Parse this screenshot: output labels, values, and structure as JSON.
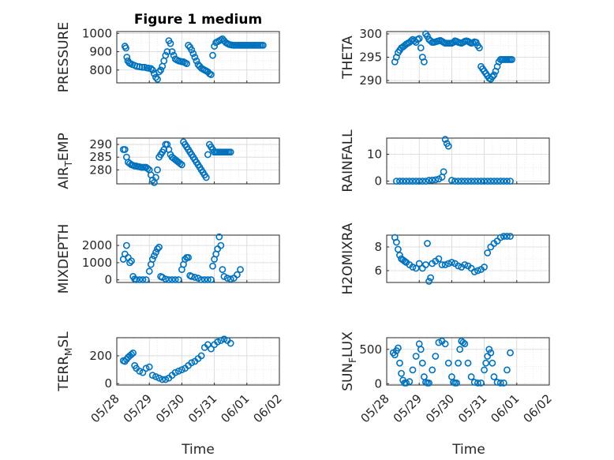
{
  "figure": {
    "title": "Figure 1 medium",
    "xlabel": "Time",
    "x_ticks": [
      "05/28",
      "05/29",
      "05/30",
      "05/31",
      "06/01",
      "06/02"
    ],
    "marker_color": "#0072BD"
  },
  "chart_data": [
    {
      "type": "scatter",
      "name": "PRESSURE",
      "ylabel_main": "PRESSURE",
      "ylabel_sub": "",
      "ylabel_tail": "",
      "ylim": [
        730,
        1010
      ],
      "yticks": [
        800,
        900,
        1000
      ],
      "grid": true,
      "x": [
        0.25,
        0.28,
        0.31,
        0.34,
        0.38,
        0.42,
        0.48,
        0.55,
        0.62,
        0.7,
        0.78,
        0.85,
        0.92,
        0.98,
        1.05,
        1.1,
        1.15,
        1.2,
        1.25,
        1.3,
        1.35,
        1.4,
        1.45,
        1.5,
        1.55,
        1.6,
        1.65,
        1.7,
        1.75,
        1.8,
        1.85,
        1.9,
        1.95,
        2.0,
        2.05,
        2.1,
        2.15,
        2.2,
        2.25,
        2.3,
        2.35,
        2.4,
        2.45,
        2.5,
        2.55,
        2.6,
        2.65,
        2.7,
        2.75,
        2.8,
        2.85,
        2.9,
        2.95,
        3.0,
        3.05,
        3.1,
        3.15,
        3.2,
        3.25,
        3.3,
        3.35,
        3.4,
        3.45,
        3.5,
        3.55,
        3.6,
        3.65,
        3.7,
        3.75,
        3.8,
        3.85,
        3.9,
        3.95,
        4.0,
        4.05,
        4.1,
        4.15,
        4.2,
        4.25,
        4.3,
        4.35,
        4.4,
        4.45,
        4.5
      ],
      "y": [
        930,
        920,
        870,
        850,
        840,
        835,
        830,
        825,
        820,
        818,
        815,
        815,
        812,
        810,
        808,
        800,
        780,
        760,
        750,
        790,
        800,
        820,
        850,
        880,
        900,
        960,
        945,
        900,
        880,
        860,
        855,
        850,
        848,
        845,
        845,
        840,
        835,
        935,
        925,
        910,
        890,
        870,
        850,
        830,
        820,
        810,
        805,
        800,
        795,
        790,
        780,
        775,
        880,
        930,
        950,
        955,
        960,
        965,
        970,
        960,
        950,
        945,
        940,
        938,
        936,
        935,
        935,
        935,
        935,
        935,
        935,
        935,
        935,
        935,
        935,
        935,
        935,
        935,
        935,
        935,
        935,
        935,
        935,
        935
      ]
    },
    {
      "type": "scatter",
      "name": "THETA",
      "ylabel_main": "THETA",
      "ylabel_sub": "",
      "ylabel_tail": "",
      "ylim": [
        289.5,
        300.5
      ],
      "yticks": [
        290,
        295,
        300
      ],
      "grid": true,
      "x": [
        0.25,
        0.3,
        0.35,
        0.4,
        0.45,
        0.5,
        0.55,
        0.6,
        0.65,
        0.7,
        0.75,
        0.8,
        0.85,
        0.9,
        0.95,
        1.0,
        1.05,
        1.1,
        1.15,
        1.2,
        1.25,
        1.3,
        1.35,
        1.4,
        1.45,
        1.5,
        1.55,
        1.6,
        1.65,
        1.7,
        1.75,
        1.8,
        1.85,
        1.9,
        1.95,
        2.0,
        2.05,
        2.1,
        2.15,
        2.2,
        2.25,
        2.3,
        2.35,
        2.4,
        2.45,
        2.5,
        2.55,
        2.6,
        2.65,
        2.7,
        2.75,
        2.8,
        2.85,
        2.9,
        2.95,
        3.0,
        3.05,
        3.1,
        3.15,
        3.2,
        3.25,
        3.3,
        3.35,
        3.4,
        3.45,
        3.5,
        3.55,
        3.6,
        3.65,
        3.7,
        3.75,
        3.8,
        3.85
      ],
      "y": [
        294,
        295,
        296,
        296.5,
        297,
        297.2,
        297.5,
        297.8,
        298,
        298.2,
        298.5,
        298.8,
        298.5,
        298.2,
        298.8,
        299,
        297,
        295,
        294,
        300,
        299.5,
        298.8,
        298.5,
        298.2,
        298.2,
        298.3,
        298.4,
        298.5,
        298.6,
        298.4,
        298.2,
        298,
        298,
        298,
        298,
        298,
        298.2,
        298.5,
        298.4,
        298.2,
        298.1,
        298,
        298.2,
        298.4,
        298.5,
        298.4,
        298.2,
        298,
        298.1,
        298.3,
        298.2,
        297.5,
        297,
        293,
        292.5,
        292,
        291.5,
        291,
        290.5,
        290.3,
        290.8,
        291.2,
        292,
        293,
        294,
        294.5,
        294.5,
        294.5,
        294.5,
        294.5,
        294.5,
        294.5,
        294.5
      ]
    },
    {
      "type": "scatter",
      "name": "AIR_TEMP",
      "ylabel_main": "AIR",
      "ylabel_sub": "T",
      "ylabel_tail": "EMP",
      "ylim": [
        274.5,
        292.5
      ],
      "yticks": [
        280,
        285,
        290
      ],
      "grid": true,
      "x": [
        0.2,
        0.25,
        0.3,
        0.35,
        0.4,
        0.45,
        0.5,
        0.55,
        0.6,
        0.65,
        0.7,
        0.75,
        0.8,
        0.85,
        0.9,
        0.95,
        1.0,
        1.05,
        1.1,
        1.15,
        1.2,
        1.25,
        1.3,
        1.35,
        1.4,
        1.45,
        1.5,
        1.55,
        1.6,
        1.65,
        1.7,
        1.75,
        1.8,
        1.85,
        1.9,
        1.95,
        2.0,
        2.05,
        2.1,
        2.15,
        2.2,
        2.25,
        2.3,
        2.35,
        2.4,
        2.45,
        2.5,
        2.55,
        2.6,
        2.65,
        2.7,
        2.75,
        2.8,
        2.85,
        2.9,
        2.95,
        3.0,
        3.05,
        3.1,
        3.15,
        3.2,
        3.25,
        3.3,
        3.35,
        3.4,
        3.45,
        3.5
      ],
      "y": [
        288,
        288,
        285,
        283,
        282.5,
        282,
        281.8,
        281.5,
        281.5,
        281.3,
        281.2,
        281,
        281,
        281,
        281,
        280.5,
        280,
        278,
        276,
        275,
        277,
        280,
        285,
        286,
        287,
        288,
        290,
        290,
        288,
        286,
        285,
        284.5,
        284,
        283.5,
        283,
        282.5,
        282,
        291,
        290,
        289,
        288,
        287,
        286,
        285,
        284,
        283,
        282,
        281,
        280,
        279,
        278,
        277,
        286,
        290,
        289,
        288,
        287,
        287,
        287,
        287,
        287,
        287,
        287,
        287,
        287,
        287,
        287
      ]
    },
    {
      "type": "scatter",
      "name": "RAINFALL",
      "ylabel_main": "RAINFALL",
      "ylabel_sub": "",
      "ylabel_tail": "",
      "ylim": [
        -1,
        16
      ],
      "yticks": [
        0,
        10
      ],
      "grid": true,
      "x": [
        0.3,
        0.4,
        0.5,
        0.6,
        0.7,
        0.8,
        0.9,
        1.0,
        1.1,
        1.2,
        1.3,
        1.4,
        1.5,
        1.6,
        1.7,
        1.75,
        1.8,
        1.85,
        1.9,
        2.0,
        2.1,
        2.2,
        2.3,
        2.4,
        2.5,
        2.6,
        2.7,
        2.8,
        2.9,
        3.0,
        3.1,
        3.2,
        3.3,
        3.4,
        3.5,
        3.6,
        3.7,
        3.8
      ],
      "y": [
        0,
        0,
        0,
        0,
        0,
        0,
        0,
        0,
        0,
        0,
        0.3,
        0.4,
        0.5,
        0.8,
        1.5,
        3.5,
        15.5,
        14,
        13,
        0.3,
        0,
        0,
        0,
        0,
        0,
        0,
        0,
        0,
        0,
        0,
        0,
        0,
        0,
        0,
        0,
        0,
        0,
        0
      ]
    },
    {
      "type": "scatter",
      "name": "MIXDEPTH",
      "ylabel_main": "MIXDEPTH",
      "ylabel_sub": "",
      "ylabel_tail": "",
      "ylim": [
        -150,
        2600
      ],
      "yticks": [
        0,
        1000,
        2000
      ],
      "grid": true,
      "x": [
        0.2,
        0.25,
        0.3,
        0.35,
        0.4,
        0.45,
        0.5,
        0.55,
        0.6,
        0.7,
        0.8,
        0.9,
        1.0,
        1.05,
        1.1,
        1.15,
        1.2,
        1.25,
        1.3,
        1.35,
        1.4,
        1.5,
        1.6,
        1.7,
        1.8,
        1.9,
        2.0,
        2.05,
        2.1,
        2.15,
        2.2,
        2.25,
        2.3,
        2.4,
        2.5,
        2.6,
        2.7,
        2.8,
        2.9,
        2.95,
        3.0,
        3.05,
        3.1,
        3.15,
        3.2,
        3.25,
        3.3,
        3.4,
        3.5,
        3.6,
        3.7,
        3.8
      ],
      "y": [
        1200,
        1500,
        2000,
        1300,
        1000,
        1100,
        200,
        50,
        10,
        10,
        10,
        10,
        500,
        900,
        1200,
        1400,
        1600,
        1800,
        1900,
        200,
        150,
        50,
        10,
        10,
        10,
        10,
        600,
        900,
        1200,
        1300,
        1300,
        250,
        200,
        150,
        100,
        10,
        10,
        10,
        10,
        800,
        1200,
        1500,
        1800,
        2500,
        2000,
        600,
        200,
        100,
        50,
        100,
        300,
        600
      ]
    },
    {
      "type": "scatter",
      "name": "H2OMIXRA",
      "ylabel_main": "H2OMIXRA",
      "ylabel_sub": "",
      "ylabel_tail": "",
      "ylim": [
        5,
        9
      ],
      "yticks": [
        6,
        8
      ],
      "grid": true,
      "x": [
        0.25,
        0.3,
        0.35,
        0.4,
        0.45,
        0.5,
        0.55,
        0.6,
        0.7,
        0.8,
        0.9,
        1.0,
        1.1,
        1.2,
        1.25,
        1.3,
        1.35,
        1.4,
        1.5,
        1.6,
        1.7,
        1.8,
        1.9,
        2.0,
        2.1,
        2.2,
        2.3,
        2.4,
        2.5,
        2.6,
        2.7,
        2.8,
        2.9,
        3.0,
        3.1,
        3.2,
        3.3,
        3.4,
        3.5,
        3.6,
        3.7,
        3.8
      ],
      "y": [
        8.8,
        8.4,
        7.8,
        7.3,
        7.0,
        6.9,
        6.8,
        6.7,
        6.5,
        6.3,
        6.2,
        6.6,
        6.2,
        6.5,
        8.3,
        5.1,
        5.4,
        6.6,
        6.8,
        7.0,
        6.5,
        6.5,
        6.6,
        6.7,
        6.6,
        6.4,
        6.3,
        6.5,
        6.4,
        6.2,
        5.9,
        6.0,
        6.1,
        6.3,
        7.5,
        8.0,
        8.3,
        8.5,
        8.8,
        8.9,
        8.9,
        8.9
      ]
    },
    {
      "type": "scatter",
      "name": "TERR_MSL",
      "ylabel_main": "TERR",
      "ylabel_sub": "M",
      "ylabel_tail": "SL",
      "ylim": [
        -10,
        330
      ],
      "yticks": [
        0,
        200
      ],
      "grid": true,
      "x": [
        0.2,
        0.25,
        0.3,
        0.35,
        0.4,
        0.45,
        0.5,
        0.55,
        0.6,
        0.7,
        0.8,
        0.9,
        1.0,
        1.1,
        1.2,
        1.3,
        1.4,
        1.5,
        1.6,
        1.7,
        1.8,
        1.9,
        2.0,
        2.1,
        2.2,
        2.3,
        2.4,
        2.5,
        2.6,
        2.7,
        2.8,
        2.9,
        3.0,
        3.1,
        3.2,
        3.3,
        3.4,
        3.5
      ],
      "y": [
        165,
        160,
        175,
        190,
        200,
        210,
        220,
        130,
        110,
        90,
        80,
        110,
        120,
        60,
        50,
        40,
        30,
        30,
        40,
        60,
        80,
        90,
        100,
        110,
        130,
        150,
        160,
        180,
        200,
        260,
        280,
        250,
        280,
        300,
        310,
        320,
        310,
        290
      ]
    },
    {
      "type": "scatter",
      "name": "SUN_FLUX",
      "ylabel_main": "SUN",
      "ylabel_sub": "F",
      "ylabel_tail": "LUX",
      "ylim": [
        -20,
        670
      ],
      "yticks": [
        0,
        500
      ],
      "grid": true,
      "x": [
        0.2,
        0.25,
        0.3,
        0.35,
        0.4,
        0.45,
        0.5,
        0.55,
        0.6,
        0.7,
        0.8,
        0.9,
        1.0,
        1.05,
        1.1,
        1.15,
        1.2,
        1.25,
        1.3,
        1.4,
        1.5,
        1.6,
        1.7,
        1.8,
        1.9,
        2.0,
        2.05,
        2.1,
        2.15,
        2.2,
        2.25,
        2.3,
        2.35,
        2.4,
        2.5,
        2.6,
        2.7,
        2.8,
        2.9,
        3.0,
        3.05,
        3.1,
        3.15,
        3.2,
        3.25,
        3.3,
        3.4,
        3.5,
        3.6,
        3.7,
        3.8
      ],
      "y": [
        450,
        420,
        480,
        520,
        300,
        150,
        50,
        10,
        10,
        30,
        200,
        400,
        580,
        500,
        300,
        100,
        20,
        10,
        10,
        200,
        400,
        600,
        620,
        580,
        300,
        100,
        20,
        10,
        10,
        300,
        500,
        620,
        600,
        580,
        300,
        100,
        20,
        10,
        10,
        200,
        300,
        400,
        500,
        450,
        300,
        100,
        20,
        10,
        10,
        200,
        450
      ]
    }
  ]
}
